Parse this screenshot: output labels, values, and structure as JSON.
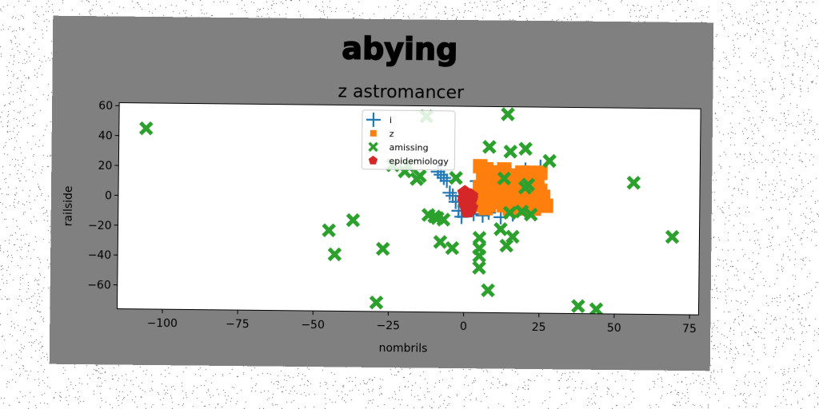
{
  "chart_data": {
    "type": "scatter",
    "title": "abying",
    "subtitle": "z astromancer",
    "xlabel": "nombrils",
    "ylabel": "railside",
    "xlim": [
      -115,
      78
    ],
    "ylim": [
      -76,
      62
    ],
    "xticks": [
      -100,
      -75,
      -50,
      -25,
      0,
      25,
      50,
      75
    ],
    "yticks": [
      -60,
      -40,
      -20,
      0,
      20,
      40,
      60
    ],
    "grid": false,
    "legend_position": "top-center",
    "series": [
      {
        "name": "i",
        "marker": "plus",
        "color": "#1f77b4",
        "x": [
          -9,
          -8,
          -7,
          -6,
          -5,
          -4,
          -3,
          -2,
          -1,
          0,
          1,
          2,
          3,
          4,
          5,
          6,
          8,
          10,
          12,
          14,
          16,
          20,
          25,
          5,
          9,
          14,
          16,
          24
        ],
        "y": [
          18,
          16,
          14,
          12,
          4,
          2,
          -2,
          -8,
          -12,
          -5,
          0,
          -3,
          -10,
          12,
          -6,
          -11,
          -9,
          -4,
          -12,
          -8,
          -10,
          20,
          22,
          6,
          3,
          -1,
          2,
          16
        ]
      },
      {
        "name": "z",
        "marker": "square",
        "color": "#ff7f0e",
        "x": [
          4,
          5,
          6,
          7,
          8,
          9,
          10,
          11,
          12,
          13,
          14,
          15,
          16,
          17,
          18,
          19,
          20,
          21,
          22,
          23,
          24,
          25,
          26,
          27,
          5,
          7,
          9,
          11,
          13,
          15,
          17,
          19,
          21,
          23,
          25,
          6,
          8,
          10,
          12,
          14,
          16,
          18,
          20,
          22,
          24,
          26,
          5,
          9,
          13,
          17,
          21,
          25,
          7,
          11,
          15,
          19,
          23
        ],
        "y": [
          2,
          8,
          14,
          20,
          10,
          4,
          -2,
          6,
          12,
          18,
          0,
          -6,
          8,
          16,
          2,
          -4,
          10,
          18,
          4,
          -2,
          12,
          6,
          0,
          -4,
          22,
          -6,
          16,
          0,
          -4,
          14,
          8,
          -2,
          12,
          -6,
          18,
          4,
          -4,
          10,
          2,
          8,
          -2,
          14,
          4,
          16,
          8,
          2,
          -4,
          18,
          20,
          10,
          -6,
          -2,
          6,
          14,
          0,
          18,
          4
        ],
        "size": "large"
      },
      {
        "name": "amissing",
        "marker": "x",
        "color": "#2ca02c",
        "x": [
          -106,
          -29,
          -43,
          -45,
          -37,
          -27,
          -8,
          -10,
          -7,
          -4,
          -13,
          -19,
          -24,
          -20,
          -15,
          -3,
          5,
          5,
          5,
          5,
          8,
          12,
          14,
          13,
          16,
          14,
          15,
          20,
          21,
          22,
          28,
          8,
          20,
          19,
          56,
          69,
          38,
          44,
          15,
          -9,
          -12,
          -16
        ],
        "y": [
          45,
          -70,
          -38,
          -22,
          -15,
          -34,
          -29,
          -12,
          -14,
          -33,
          55,
          22,
          22,
          18,
          15,
          14,
          -26,
          -33,
          -38,
          -46,
          -61,
          -20,
          -31,
          14,
          -25,
          57,
          32,
          34,
          10,
          -10,
          26,
          35,
          8,
          -8,
          12,
          -24,
          -71,
          -73,
          -9,
          -13,
          -11,
          13
        ],
        "size": "large"
      },
      {
        "name": "epidemiology",
        "marker": "pentagon",
        "color": "#d62728",
        "x": [
          0,
          1,
          2,
          0,
          1,
          2,
          1,
          0,
          2
        ],
        "y": [
          4,
          2,
          0,
          -2,
          -4,
          -6,
          -8,
          0,
          2
        ],
        "size": "large"
      }
    ]
  }
}
